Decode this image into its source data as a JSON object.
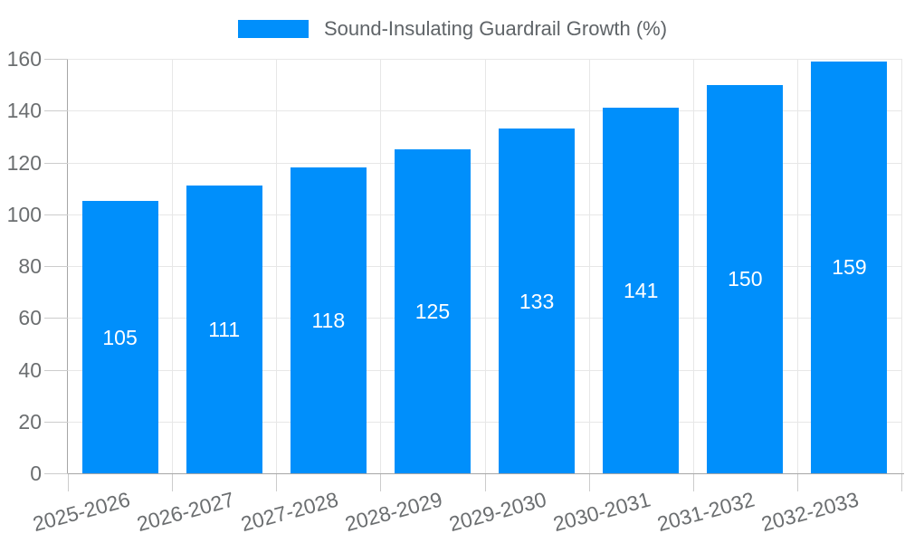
{
  "legend": {
    "label": "Sound-Insulating Guardrail Growth (%)",
    "swatch_color": "#008FFB"
  },
  "chart_data": {
    "type": "bar",
    "title": "Sound-Insulating Guardrail Growth (%)",
    "categories": [
      "2025-2026",
      "2026-2027",
      "2027-2028",
      "2028-2029",
      "2029-2030",
      "2030-2031",
      "2031-2032",
      "2032-2033"
    ],
    "values": [
      105,
      111,
      118,
      125,
      133,
      141,
      150,
      159
    ],
    "xlabel": "",
    "ylabel": "",
    "ylim": [
      0,
      160
    ],
    "yticks": [
      0,
      20,
      40,
      60,
      80,
      100,
      120,
      140,
      160
    ],
    "grid": true,
    "legend_position": "top",
    "x_label_rotation": -15,
    "bar_color": "#008FFB",
    "value_label_color": "#ffffff",
    "axis_label_color": "#6b6e70",
    "gridline_color": "#e7e7e7",
    "axis_line_color": "#a6a6a6"
  }
}
